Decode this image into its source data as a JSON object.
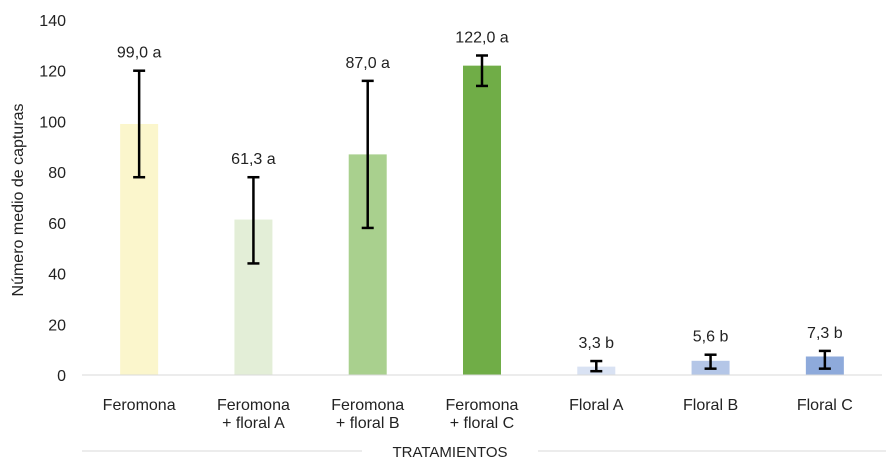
{
  "chart_data": {
    "type": "bar",
    "title": "",
    "ylabel": "Número medio de capturas",
    "xlabel": "TRATAMIENTOS",
    "ylim": [
      0,
      140
    ],
    "yticks": [
      0,
      20,
      40,
      60,
      80,
      100,
      120,
      140
    ],
    "grid": false,
    "legend": "none",
    "categories": [
      [
        "Feromona"
      ],
      [
        "Feromona",
        "+ floral A"
      ],
      [
        "Feromona",
        "+ floral B"
      ],
      [
        "Feromona",
        "+ floral C"
      ],
      [
        "Floral A"
      ],
      [
        "Floral B"
      ],
      [
        "Floral C"
      ]
    ],
    "values": [
      99.0,
      61.3,
      87.0,
      122.0,
      3.3,
      5.6,
      7.3
    ],
    "error_low": [
      78,
      44,
      58,
      114,
      1.5,
      2.5,
      2.5
    ],
    "error_high": [
      120,
      78,
      116,
      126,
      5.5,
      8,
      9.5
    ],
    "data_labels": [
      "99,0 a",
      "61,3 a",
      "87,0 a",
      "122,0 a",
      "3,3 b",
      "5,6 b",
      "7,3 b"
    ],
    "colors": [
      "#fbf6cc",
      "#e3eed7",
      "#a9d08e",
      "#70ad47",
      "#d9e2f3",
      "#b4c6e7",
      "#8eaadb"
    ]
  }
}
